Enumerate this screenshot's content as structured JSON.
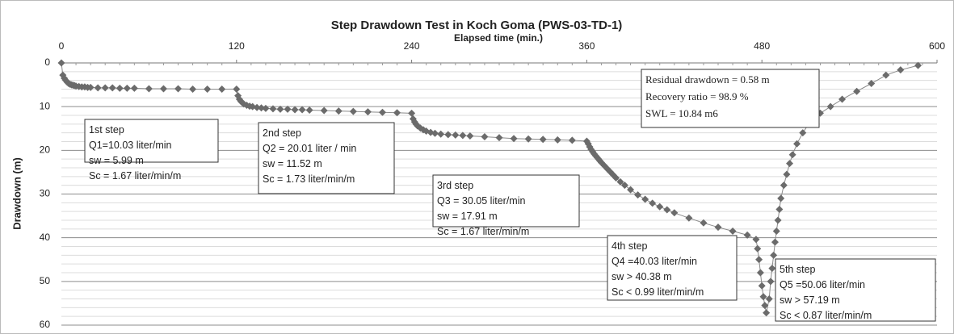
{
  "chart_data": {
    "type": "line",
    "title": "Step Drawdown  Test   in Koch Goma (PWS-03-TD-1)",
    "x_label": "Elapsed time (min.)",
    "y_label": "Drawdown (m)",
    "xlim": [
      0,
      600
    ],
    "xticks": [
      0,
      120,
      240,
      360,
      480,
      600
    ],
    "ylim": [
      0,
      60
    ],
    "yticks": [
      0,
      10,
      20,
      30,
      40,
      50,
      60
    ],
    "y_inverted": true,
    "x_axis_position": "top",
    "grid": true,
    "color": "#6b6b6b",
    "line_color": "#8a8a8a",
    "marker": "diamond",
    "x": [
      0,
      1,
      2,
      3,
      4,
      5,
      6,
      7,
      8,
      9,
      10,
      12,
      14,
      16,
      18,
      20,
      25,
      30,
      35,
      40,
      45,
      50,
      60,
      70,
      80,
      90,
      100,
      110,
      120,
      121,
      122,
      123,
      124,
      125,
      127,
      129,
      131,
      134,
      137,
      140,
      145,
      150,
      155,
      160,
      165,
      170,
      180,
      190,
      200,
      210,
      220,
      230,
      240,
      241,
      242,
      243,
      244,
      246,
      248,
      250,
      253,
      256,
      260,
      265,
      270,
      275,
      280,
      290,
      300,
      310,
      320,
      330,
      340,
      350,
      360,
      361,
      362,
      363,
      364,
      365,
      366,
      367,
      368,
      369,
      370,
      372,
      374,
      376,
      378,
      380,
      383,
      386,
      390,
      395,
      400,
      405,
      410,
      415,
      420,
      430,
      440,
      450,
      460,
      470,
      476,
      477,
      478,
      479,
      480,
      481,
      482,
      483,
      485,
      486,
      487,
      488,
      489,
      490,
      491,
      492,
      493,
      495,
      497,
      499,
      501,
      504,
      508,
      513,
      520,
      527,
      535,
      545,
      555,
      565,
      575,
      587
    ],
    "values": [
      0,
      2.8,
      3.5,
      4,
      4.4,
      4.7,
      4.9,
      5.0,
      5.1,
      5.2,
      5.3,
      5.4,
      5.5,
      5.5,
      5.6,
      5.6,
      5.7,
      5.7,
      5.7,
      5.8,
      5.8,
      5.8,
      5.9,
      5.9,
      5.9,
      6.0,
      6.0,
      6.0,
      5.99,
      7.5,
      8.3,
      8.8,
      9.1,
      9.4,
      9.7,
      9.9,
      10.0,
      10.2,
      10.3,
      10.4,
      10.5,
      10.6,
      10.6,
      10.7,
      10.7,
      10.8,
      10.9,
      11.0,
      11.1,
      11.2,
      11.3,
      11.4,
      11.52,
      12.8,
      13.5,
      14.0,
      14.4,
      14.9,
      15.3,
      15.6,
      15.9,
      16.1,
      16.3,
      16.4,
      16.5,
      16.6,
      16.7,
      16.9,
      17.1,
      17.3,
      17.4,
      17.5,
      17.6,
      17.7,
      17.91,
      18.5,
      19.2,
      19.8,
      20.3,
      20.8,
      21.2,
      21.6,
      22.0,
      22.4,
      22.8,
      23.5,
      24.2,
      24.9,
      25.6,
      26.3,
      27.2,
      28.0,
      29.0,
      30.2,
      31.2,
      32.1,
      32.9,
      33.6,
      34.3,
      35.5,
      36.6,
      37.6,
      38.5,
      39.4,
      40.38,
      42.5,
      45,
      48,
      51,
      53.5,
      55.5,
      57.19,
      54,
      50,
      47,
      44,
      41,
      38.5,
      36,
      33.5,
      31,
      28,
      25.5,
      23,
      21,
      18.5,
      16,
      13.5,
      11.5,
      10,
      8.3,
      6.5,
      4.7,
      2.8,
      1.6,
      0.58
    ],
    "annotations": [
      {
        "lines": [
          "1st step",
          "Q1=10.03 liter/min",
          "sw = 5.99 m",
          "Sc = 1.67 liter/min/m"
        ]
      },
      {
        "lines": [
          "2nd step",
          "Q2 = 20.01 liter / min",
          "sw = 11.52 m",
          "Sc = 1.73 liter/min/m"
        ]
      },
      {
        "lines": [
          "3rd step",
          "Q3 = 30.05 liter/min",
          "sw = 17.91 m",
          "Sc = 1.67 liter/min/m"
        ]
      },
      {
        "lines": [
          "4th step",
          "Q4 =40.03 liter/min",
          "sw > 40.38 m",
          "Sc < 0.99 liter/min/m"
        ]
      },
      {
        "lines": [
          "5th step",
          "Q5 =50.06 liter/min",
          "sw > 57.19 m",
          "Sc < 0.87 liter/min/m"
        ]
      },
      {
        "lines": [
          "Residual drawdown = 0.58 m",
          "Recovery ratio =  98.9 %",
          "SWL = 10.84 m6"
        ]
      }
    ]
  }
}
